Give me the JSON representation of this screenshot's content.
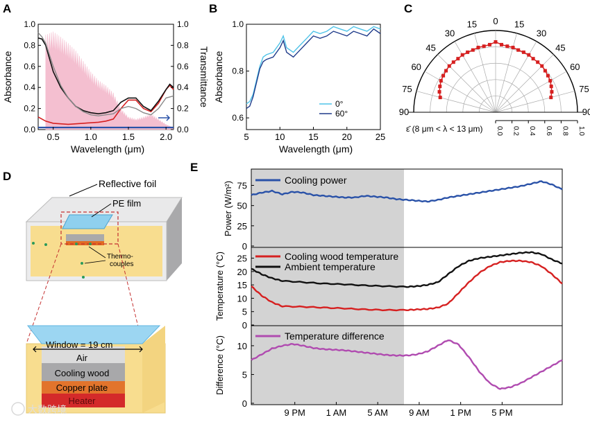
{
  "panels": {
    "A": {
      "letter": "A",
      "xlabel": "Wavelength (μm)",
      "ylabel_left": "Absorbance",
      "ylabel_right": "Transmittance",
      "xticks": [
        "0.5",
        "1.0",
        "1.5",
        "2.0"
      ],
      "yticks_left": [
        "0.0",
        "0.2",
        "0.4",
        "0.6",
        "0.8",
        "1.0"
      ],
      "yticks_right": [
        "0.0",
        "0.2",
        "0.4",
        "0.6",
        "0.8",
        "1.0"
      ]
    },
    "B": {
      "letter": "B",
      "xlabel": "Wavelength (μm)",
      "ylabel": "Absorbance",
      "xticks": [
        "5",
        "10",
        "15",
        "20",
        "25"
      ],
      "yticks": [
        "0.6",
        "0.8",
        "1.0"
      ],
      "legend": [
        "0°",
        "60°"
      ]
    },
    "C": {
      "letter": "C",
      "angle_labels": [
        "0",
        "15",
        "30",
        "45",
        "60",
        "75",
        "90"
      ],
      "radial_ticks": [
        "0.0",
        "0.2",
        "0.4",
        "0.6",
        "0.8",
        "1.0"
      ],
      "axis_label": "ε̄ (8 μm < λ < 13 μm)"
    },
    "D": {
      "letter": "D",
      "reflective_foil": "Reflective foil",
      "pe_film": "PE film",
      "thermocouples": [
        "Thermo-",
        "couples"
      ],
      "window": "Window = 19 cm",
      "layers": [
        "Air",
        "Cooling wood",
        "Copper plate",
        "Heater"
      ]
    },
    "E": {
      "letter": "E",
      "xticks": [
        "9 PM",
        "1 AM",
        "5 AM",
        "9 AM",
        "1 PM",
        "5 PM"
      ],
      "top": {
        "ylabel": "Power (W/m²)",
        "yticks": [
          "0",
          "25",
          "50",
          "75"
        ],
        "legend": "Cooling power"
      },
      "mid": {
        "ylabel": "Temperature (°C)",
        "yticks": [
          "0",
          "5",
          "10",
          "15",
          "20",
          "25"
        ],
        "legend": [
          "Cooling wood temperature",
          "Ambient temperature"
        ]
      },
      "bot": {
        "ylabel": "Difference (°C)",
        "yticks": [
          "0",
          "5",
          "10"
        ],
        "legend": "Temperature difference"
      }
    }
  },
  "watermark": "大数跨境",
  "colors": {
    "red": "#d62020",
    "black": "#111111",
    "gray": "#8a8a8a",
    "pink": "#f4bfd0",
    "blue": "#2a52a8",
    "navy": "#1e3a8a",
    "cyan": "#4fc3e8",
    "purple": "#b04bb0",
    "shade": "#d3d3d3"
  },
  "chart_data": [
    {
      "panel": "A",
      "type": "line",
      "xlim": [
        0.3,
        2.1
      ],
      "ylim": [
        0,
        1
      ],
      "series": [
        {
          "values": [
            [
              0.3,
              0.12
            ],
            [
              0.35,
              0.1
            ],
            [
              0.4,
              0.08
            ],
            [
              0.5,
              0.06
            ],
            [
              0.7,
              0.05
            ],
            [
              0.9,
              0.06
            ],
            [
              1.1,
              0.07
            ],
            [
              1.2,
              0.08
            ],
            [
              1.3,
              0.1
            ],
            [
              1.4,
              0.2
            ],
            [
              1.5,
              0.28
            ],
            [
              1.6,
              0.28
            ],
            [
              1.7,
              0.2
            ],
            [
              1.8,
              0.17
            ],
            [
              1.9,
              0.25
            ],
            [
              2.0,
              0.38
            ],
            [
              2.05,
              0.42
            ],
            [
              2.1,
              0.38
            ]
          ]
        },
        {
          "values": [
            [
              0.3,
              0.87
            ],
            [
              0.35,
              0.86
            ],
            [
              0.4,
              0.8
            ],
            [
              0.5,
              0.55
            ],
            [
              0.6,
              0.4
            ],
            [
              0.7,
              0.3
            ],
            [
              0.8,
              0.22
            ],
            [
              0.9,
              0.18
            ],
            [
              1.0,
              0.16
            ],
            [
              1.1,
              0.15
            ],
            [
              1.2,
              0.16
            ],
            [
              1.3,
              0.18
            ],
            [
              1.4,
              0.26
            ],
            [
              1.5,
              0.3
            ],
            [
              1.6,
              0.3
            ],
            [
              1.7,
              0.22
            ],
            [
              1.8,
              0.18
            ],
            [
              1.9,
              0.27
            ],
            [
              2.0,
              0.38
            ],
            [
              2.05,
              0.43
            ],
            [
              2.1,
              0.4
            ]
          ]
        },
        {
          "values": [
            [
              0.3,
              0.92
            ],
            [
              0.35,
              0.88
            ],
            [
              0.4,
              0.82
            ],
            [
              0.5,
              0.6
            ],
            [
              0.6,
              0.42
            ],
            [
              0.7,
              0.3
            ],
            [
              0.8,
              0.22
            ],
            [
              0.9,
              0.17
            ],
            [
              1.0,
              0.14
            ],
            [
              1.1,
              0.13
            ],
            [
              1.2,
              0.14
            ],
            [
              1.3,
              0.15
            ],
            [
              1.4,
              0.2
            ],
            [
              1.5,
              0.22
            ],
            [
              1.6,
              0.2
            ],
            [
              1.7,
              0.16
            ],
            [
              1.8,
              0.14
            ],
            [
              1.9,
              0.2
            ],
            [
              2.0,
              0.3
            ],
            [
              2.1,
              0.32
            ]
          ]
        },
        {
          "values": [
            [
              0.3,
              0.02
            ],
            [
              0.5,
              0.02
            ],
            [
              1.0,
              0.02
            ],
            [
              1.5,
              0.02
            ],
            [
              2.1,
              0.02
            ]
          ]
        },
        {
          "values": [
            [
              0.4,
              0.9
            ],
            [
              0.5,
              0.93
            ],
            [
              0.6,
              0.88
            ],
            [
              0.7,
              0.82
            ],
            [
              0.8,
              0.75
            ],
            [
              0.9,
              0.65
            ],
            [
              1.0,
              0.55
            ],
            [
              1.1,
              0.47
            ],
            [
              1.2,
              0.42
            ],
            [
              1.3,
              0.35
            ],
            [
              1.4,
              0.2
            ],
            [
              1.5,
              0.12
            ],
            [
              1.6,
              0.1
            ],
            [
              1.7,
              0.12
            ],
            [
              1.8,
              0.15
            ],
            [
              1.9,
              0.1
            ],
            [
              2.0,
              0.05
            ],
            [
              2.1,
              0.02
            ]
          ]
        }
      ]
    },
    {
      "panel": "B",
      "type": "line",
      "xlim": [
        5,
        25
      ],
      "ylim": [
        0.55,
        1.0
      ],
      "series": [
        {
          "name": "0°",
          "values": [
            [
              5,
              0.66
            ],
            [
              5.5,
              0.67
            ],
            [
              6,
              0.7
            ],
            [
              7,
              0.82
            ],
            [
              7.5,
              0.86
            ],
            [
              8,
              0.87
            ],
            [
              9,
              0.88
            ],
            [
              10,
              0.92
            ],
            [
              10.5,
              0.95
            ],
            [
              11,
              0.9
            ],
            [
              12,
              0.88
            ],
            [
              13,
              0.91
            ],
            [
              14,
              0.94
            ],
            [
              15,
              0.97
            ],
            [
              16,
              0.96
            ],
            [
              17,
              0.97
            ],
            [
              18,
              0.99
            ],
            [
              19,
              0.98
            ],
            [
              20,
              0.97
            ],
            [
              21,
              0.99
            ],
            [
              22,
              0.98
            ],
            [
              23,
              0.97
            ],
            [
              24,
              0.99
            ],
            [
              25,
              0.98
            ]
          ]
        },
        {
          "name": "60°",
          "values": [
            [
              5,
              0.64
            ],
            [
              5.5,
              0.65
            ],
            [
              6,
              0.69
            ],
            [
              7,
              0.81
            ],
            [
              7.5,
              0.84
            ],
            [
              8,
              0.85
            ],
            [
              9,
              0.86
            ],
            [
              10,
              0.9
            ],
            [
              10.5,
              0.93
            ],
            [
              11,
              0.88
            ],
            [
              12,
              0.86
            ],
            [
              13,
              0.89
            ],
            [
              14,
              0.92
            ],
            [
              15,
              0.95
            ],
            [
              16,
              0.94
            ],
            [
              17,
              0.95
            ],
            [
              18,
              0.97
            ],
            [
              19,
              0.96
            ],
            [
              20,
              0.95
            ],
            [
              21,
              0.97
            ],
            [
              22,
              0.96
            ],
            [
              23,
              0.95
            ],
            [
              24,
              0.98
            ],
            [
              25,
              0.96
            ]
          ]
        }
      ]
    },
    {
      "panel": "C",
      "type": "scatter",
      "rlim": [
        0,
        1
      ],
      "x": [
        -75,
        -70,
        -65,
        -60,
        -55,
        -50,
        -45,
        -40,
        -35,
        -30,
        -25,
        -20,
        -15,
        -10,
        -5,
        0,
        5,
        10,
        15,
        20,
        25,
        30,
        35,
        40,
        45,
        50,
        55,
        60,
        65,
        70,
        75
      ],
      "values": [
        0.7,
        0.73,
        0.75,
        0.77,
        0.78,
        0.79,
        0.8,
        0.8,
        0.8,
        0.81,
        0.81,
        0.81,
        0.82,
        0.82,
        0.83,
        0.86,
        0.83,
        0.82,
        0.82,
        0.81,
        0.81,
        0.81,
        0.8,
        0.8,
        0.8,
        0.79,
        0.78,
        0.77,
        0.75,
        0.73,
        0.7
      ]
    },
    {
      "panel": "E-top",
      "type": "line",
      "x": [
        0,
        1,
        2,
        3,
        4,
        5,
        6,
        7,
        8,
        9,
        10,
        11,
        12,
        13,
        14,
        15,
        16,
        17,
        18,
        19,
        20,
        21,
        22,
        23,
        24,
        25,
        26,
        27,
        28,
        29,
        30
      ],
      "ylim": [
        0,
        90
      ],
      "series": [
        {
          "name": "Cooling power",
          "values": [
            63,
            66,
            68,
            64,
            67,
            66,
            63,
            62,
            61,
            60,
            60,
            62,
            61,
            60,
            58,
            57,
            56,
            55,
            57,
            60,
            62,
            64,
            66,
            68,
            70,
            72,
            74,
            77,
            80,
            76,
            70
          ]
        }
      ]
    },
    {
      "panel": "E-mid",
      "type": "line",
      "ylim": [
        0,
        28
      ],
      "series": [
        {
          "name": "Cooling wood temperature",
          "values": [
            [
              0,
              14.5
            ],
            [
              1,
              11
            ],
            [
              2,
              8.5
            ],
            [
              3,
              7
            ],
            [
              5,
              6.8
            ],
            [
              7,
              6.5
            ],
            [
              9,
              6.2
            ],
            [
              11,
              5.8
            ],
            [
              13,
              5.6
            ],
            [
              15,
              5.6
            ],
            [
              16,
              5.8
            ],
            [
              17,
              6
            ],
            [
              18,
              6.5
            ],
            [
              19,
              8
            ],
            [
              20,
              12
            ],
            [
              21,
              16
            ],
            [
              22,
              19.5
            ],
            [
              23,
              22
            ],
            [
              24,
              23.5
            ],
            [
              25,
              24
            ],
            [
              26,
              24
            ],
            [
              27,
              23.5
            ],
            [
              28,
              22
            ],
            [
              29,
              19
            ],
            [
              30,
              15.5
            ]
          ]
        },
        {
          "name": "Ambient temperature",
          "values": [
            [
              0,
              21
            ],
            [
              1,
              19
            ],
            [
              2,
              17.5
            ],
            [
              3,
              16.5
            ],
            [
              5,
              16
            ],
            [
              7,
              15.5
            ],
            [
              9,
              15.2
            ],
            [
              11,
              14.8
            ],
            [
              13,
              14.5
            ],
            [
              15,
              14.3
            ],
            [
              16,
              14.5
            ],
            [
              17,
              15
            ],
            [
              18,
              16
            ],
            [
              19,
              19
            ],
            [
              20,
              22
            ],
            [
              21,
              24
            ],
            [
              22,
              25
            ],
            [
              23,
              25.5
            ],
            [
              24,
              26
            ],
            [
              25,
              26.5
            ],
            [
              26,
              27
            ],
            [
              27,
              27.2
            ],
            [
              28,
              26.5
            ],
            [
              29,
              24.5
            ],
            [
              30,
              23
            ]
          ]
        }
      ]
    },
    {
      "panel": "E-bot",
      "type": "line",
      "ylim": [
        0,
        13
      ],
      "series": [
        {
          "name": "Temperature difference",
          "values": [
            [
              0,
              7.5
            ],
            [
              1,
              8.5
            ],
            [
              2,
              9.5
            ],
            [
              3,
              10
            ],
            [
              4,
              10.3
            ],
            [
              5,
              10
            ],
            [
              6,
              9.6
            ],
            [
              7,
              9.4
            ],
            [
              8,
              9.3
            ],
            [
              9,
              9.2
            ],
            [
              10,
              9
            ],
            [
              11,
              8.8
            ],
            [
              12,
              8.6
            ],
            [
              13,
              8.4
            ],
            [
              14,
              8.3
            ],
            [
              15,
              8.3
            ],
            [
              16,
              8.5
            ],
            [
              17,
              9
            ],
            [
              18,
              10
            ],
            [
              19,
              11
            ],
            [
              20,
              10.2
            ],
            [
              21,
              8
            ],
            [
              22,
              5.5
            ],
            [
              23,
              3.5
            ],
            [
              24,
              2.5
            ],
            [
              25,
              2.8
            ],
            [
              26,
              3.5
            ],
            [
              27,
              4.5
            ],
            [
              28,
              5.5
            ],
            [
              29,
              6.5
            ],
            [
              30,
              7.5
            ]
          ]
        }
      ]
    }
  ]
}
